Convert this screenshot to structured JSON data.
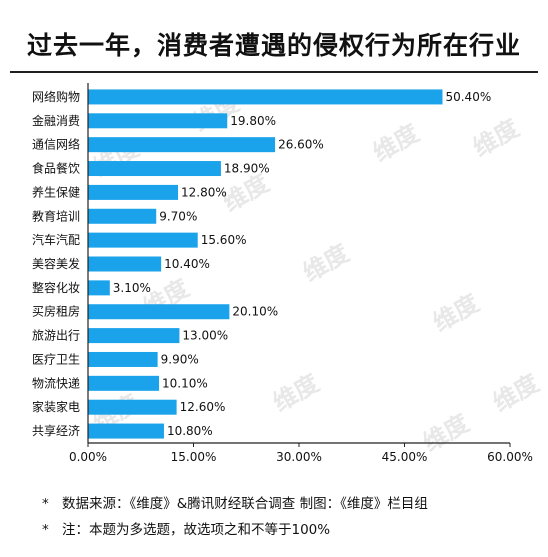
{
  "title": "过去一年，消费者遭遇的侵权行为所在行业",
  "chart_data": {
    "type": "bar",
    "orientation": "horizontal",
    "categories": [
      "网络购物",
      "金融消费",
      "通信网络",
      "食品餐饮",
      "养生保健",
      "教育培训",
      "汽车汽配",
      "美容美发",
      "整容化妆",
      "买房租房",
      "旅游出行",
      "医疗卫生",
      "物流快递",
      "家装家电",
      "共享经济"
    ],
    "values": [
      50.4,
      19.8,
      26.6,
      18.9,
      12.8,
      9.7,
      15.6,
      10.4,
      3.1,
      20.1,
      13.0,
      9.9,
      10.1,
      12.6,
      10.8
    ],
    "value_labels": [
      "50.40%",
      "19.80%",
      "26.60%",
      "18.90%",
      "12.80%",
      "9.70%",
      "15.60%",
      "10.40%",
      "3.10%",
      "20.10%",
      "13.00%",
      "9.90%",
      "10.10%",
      "12.60%",
      "10.80%"
    ],
    "xlim": [
      0,
      60
    ],
    "x_ticks": [
      0,
      15,
      30,
      45,
      60
    ],
    "x_tick_labels": [
      "0.00%",
      "15.00%",
      "30.00%",
      "45.00%",
      "60.00%"
    ],
    "bar_color": "#1aa3ea",
    "grid": false,
    "legend": "none"
  },
  "notes": [
    {
      "star": "*",
      "text": "数据来源：《维度》&腾讯财经联合调查  制图：《维度》栏目组"
    },
    {
      "star": "*",
      "text": "注：本题为多选题，故选项之和不等于100%"
    }
  ],
  "watermark": "维度"
}
